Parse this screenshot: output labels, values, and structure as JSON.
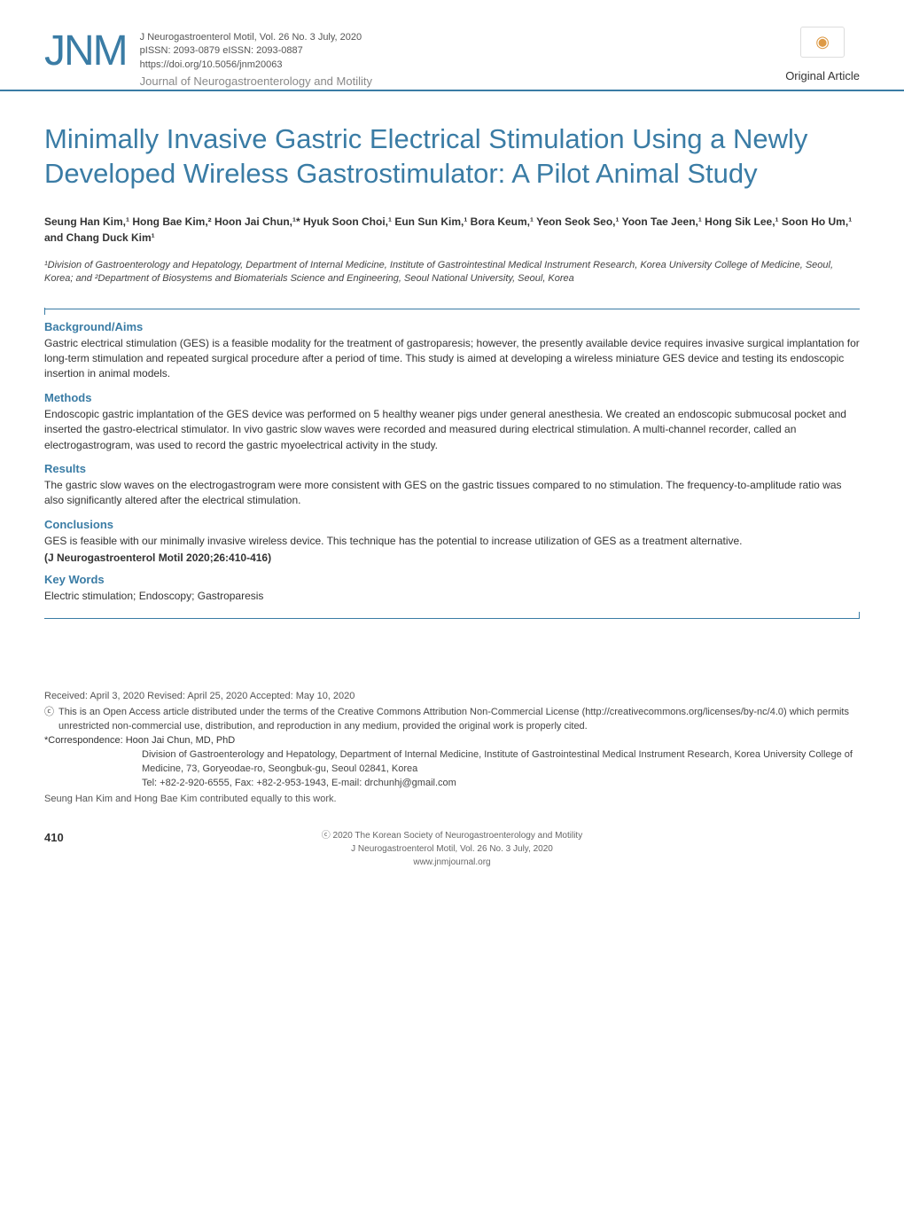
{
  "header": {
    "logo": "JNM",
    "journal_line1": "J Neurogastroenterol Motil,  Vol. 26  No. 3   July,  2020",
    "journal_line2": "pISSN: 2093-0879   eISSN: 2093-0887",
    "journal_line3": "https://doi.org/10.5056/jnm20063",
    "journal_subtitle": "Journal of Neurogastroenterology and Motility",
    "crossmark_icon": "◉",
    "article_type": "Original Article"
  },
  "title": "Minimally Invasive Gastric Electrical Stimulation Using a Newly Developed Wireless Gastrostimulator: A Pilot Animal Study",
  "authors_html": "Seung Han Kim,¹ Hong Bae Kim,² Hoon Jai Chun,¹* Hyuk Soon Choi,¹ Eun Sun Kim,¹ Bora Keum,¹ Yeon Seok Seo,¹ Yoon Tae Jeen,¹ Hong Sik Lee,¹ Soon Ho Um,¹ and Chang Duck Kim¹",
  "affiliations_html": "¹Division of Gastroenterology and Hepatology, Department of Internal Medicine, Institute of Gastrointestinal Medical Instrument Research, Korea University College of Medicine, Seoul, Korea; and ²Department of Biosystems and Biomaterials Science and Engineering, Seoul National University, Seoul, Korea",
  "abstract": {
    "sections": [
      {
        "heading": "Background/Aims",
        "text": "Gastric electrical stimulation (GES) is a feasible modality for the treatment of gastroparesis; however, the presently available device requires invasive surgical implantation for long-term stimulation and repeated surgical procedure after a period of time. This study is aimed at developing a wireless miniature GES device and testing its endoscopic insertion in animal models."
      },
      {
        "heading": "Methods",
        "text": "Endoscopic gastric implantation of the GES device was performed on 5 healthy weaner pigs under general anesthesia. We created an endoscopic submucosal pocket and inserted the gastro-electrical stimulator. In vivo gastric slow waves were recorded and measured during electrical stimulation. A multi-channel recorder, called an electrogastrogram, was used to record the gastric myoelectrical activity in the study."
      },
      {
        "heading": "Results",
        "text": "The gastric slow waves on the electrogastrogram were more consistent with GES on the gastric tissues compared to no stimulation. The frequency-to-amplitude ratio was also significantly altered after the electrical stimulation."
      },
      {
        "heading": "Conclusions",
        "text": "GES is feasible with our minimally invasive wireless device. This technique has the potential to increase utilization of GES as a treatment alternative."
      }
    ],
    "citation": "(J Neurogastroenterol Motil 2020;26:410-416)",
    "keywords_heading": "Key Words",
    "keywords_text": "Electric stimulation; Endoscopy; Gastroparesis"
  },
  "footer": {
    "received": "Received: April 3, 2020    Revised: April 25, 2020    Accepted: May 10, 2020",
    "license_icon": "ⓒ",
    "license": "This is an Open Access article distributed under the terms of the Creative Commons Attribution Non-Commercial License (http://creativecommons.org/licenses/by-nc/4.0) which permits unrestricted non-commercial use, distribution, and reproduction in any medium, provided the original work is properly cited.",
    "corr_label": "*Correspondence: Hoon Jai Chun, MD, PhD",
    "corr_line1": "Division of Gastroenterology and Hepatology, Department of Internal Medicine, Institute of Gastrointestinal Medical Instrument Research, Korea University College of Medicine, 73, Goryeodae-ro, Seongbuk-gu, Seoul 02841, Korea",
    "corr_line2": "Tel: +82-2-920-6555, Fax: +82-2-953-1943, E-mail: drchunhj@gmail.com",
    "contrib": "Seung Han Kim and Hong Bae Kim contributed equally to this work."
  },
  "page_footer": {
    "copyright": "ⓒ 2020 The Korean Society of Neurogastroenterology and Motility",
    "citation": "J Neurogastroenterol Motil, Vol. 26  No. 3   July,  2020",
    "url": "www.jnmjournal.org",
    "page_number": "410"
  },
  "colors": {
    "accent": "#3a7ca5",
    "text": "#333333",
    "muted": "#666666",
    "background": "#ffffff"
  },
  "typography": {
    "title_fontsize": 31,
    "body_fontsize": 12,
    "heading_fontsize": 13,
    "footer_fontsize": 11
  }
}
